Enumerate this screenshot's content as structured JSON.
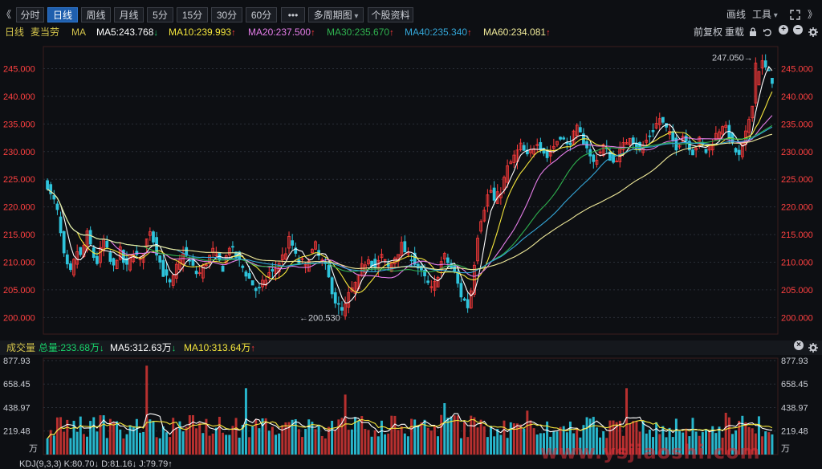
{
  "toolbar": {
    "collapse": "《",
    "expand": "》",
    "periods": [
      {
        "label": "分时",
        "active": false
      },
      {
        "label": "日线",
        "active": true
      },
      {
        "label": "周线",
        "active": false
      },
      {
        "label": "月线",
        "active": false
      },
      {
        "label": "5分",
        "active": false
      },
      {
        "label": "15分",
        "active": false
      },
      {
        "label": "30分",
        "active": false
      },
      {
        "label": "60分",
        "active": false
      }
    ],
    "more": "•••",
    "multi_period": "多周期图",
    "profile": "个股资料",
    "draw": "画线",
    "tools": "工具",
    "fullscreen_icon": "expand-icon",
    "window_icon": "chevrons-right-icon"
  },
  "legend": {
    "period": "日线",
    "stock": "麦当劳",
    "ma_label": "MA",
    "ma": [
      {
        "label": "MA5:243.768",
        "arrow": "↓",
        "dir": "down",
        "color": "#ffffff"
      },
      {
        "label": "MA10:239.993",
        "arrow": "↑",
        "dir": "up",
        "color": "#f5e63c"
      },
      {
        "label": "MA20:237.500",
        "arrow": "↑",
        "dir": "up",
        "color": "#e57de8"
      },
      {
        "label": "MA30:235.670",
        "arrow": "↑",
        "dir": "up",
        "color": "#2fb24f"
      },
      {
        "label": "MA40:235.340",
        "arrow": "↑",
        "dir": "up",
        "color": "#34a7d9"
      },
      {
        "label": "MA60:234.081",
        "arrow": "↑",
        "dir": "up",
        "color": "#f0ea9a"
      }
    ],
    "adjust": "前复权",
    "reset": "重载"
  },
  "chart_data": [
    {
      "type": "candlestick",
      "ylim": [
        197,
        249
      ],
      "y_ticks": [
        "200.000",
        "205.000",
        "210.000",
        "215.000",
        "220.000",
        "225.000",
        "230.000",
        "235.000",
        "240.000",
        "245.000"
      ],
      "annotations": [
        {
          "text": "247.050→",
          "value": 247.05,
          "kind": "high"
        },
        {
          "text": "←200.530",
          "value": 200.53,
          "kind": "low"
        }
      ],
      "close_path": [
        224,
        222,
        221,
        219,
        215,
        211,
        209,
        208,
        210,
        212,
        211,
        213,
        215,
        213,
        211,
        210,
        212,
        214,
        212,
        210,
        209,
        211,
        212,
        210,
        209,
        211,
        212,
        211,
        210,
        212,
        214,
        216,
        214,
        212,
        210,
        208,
        207,
        206,
        207,
        209,
        210,
        212,
        211,
        210,
        209,
        208,
        208,
        209,
        210,
        211,
        212,
        211,
        210,
        209,
        211,
        213,
        212,
        211,
        210,
        209,
        208,
        207,
        206,
        205,
        205,
        206,
        207,
        208,
        208,
        209,
        210,
        211,
        212,
        214,
        213,
        211,
        210,
        210,
        209,
        211,
        212,
        213,
        211,
        210,
        209,
        207,
        205,
        203,
        202,
        201,
        202,
        204,
        205,
        206,
        207,
        209,
        210,
        211,
        210,
        209,
        210,
        211,
        210,
        209,
        210,
        211,
        212,
        213,
        212,
        211,
        211,
        210,
        209,
        208,
        207,
        206,
        205,
        206,
        208,
        210,
        211,
        210,
        209,
        208,
        206,
        204,
        203,
        202,
        205,
        210,
        215,
        218,
        220,
        222,
        223,
        221,
        222,
        223,
        225,
        227,
        228,
        229,
        230,
        231,
        230,
        229,
        230,
        231,
        232,
        231,
        230,
        229,
        230,
        231,
        232,
        233,
        232,
        231,
        232,
        233,
        234,
        233,
        232,
        231,
        229,
        228,
        229,
        230,
        231,
        230,
        229,
        228,
        229,
        230,
        231,
        232,
        233,
        232,
        231,
        230,
        231,
        232,
        233,
        234,
        235,
        236,
        235,
        234,
        233,
        232,
        231,
        232,
        233,
        232,
        231,
        230,
        231,
        232,
        231,
        230,
        231,
        232,
        233,
        234,
        235,
        234,
        233,
        231,
        230,
        229,
        231,
        233,
        236,
        239,
        242,
        245,
        246,
        245,
        244,
        243
      ],
      "ma_series": [
        {
          "name": "MA5",
          "color": "#ffffff",
          "window": 5
        },
        {
          "name": "MA10",
          "color": "#f5e63c",
          "window": 10
        },
        {
          "name": "MA20",
          "color": "#e57de8",
          "window": 20
        },
        {
          "name": "MA30",
          "color": "#2fb24f",
          "window": 30
        },
        {
          "name": "MA40",
          "color": "#34a7d9",
          "window": 40
        },
        {
          "name": "MA60",
          "color": "#f0ea9a",
          "window": 60
        }
      ]
    },
    {
      "type": "bar",
      "ylim": [
        0,
        900
      ],
      "y_ticks": [
        "219.48",
        "438.97",
        "658.45",
        "877.93"
      ],
      "unit": "万",
      "spikes": [
        {
          "index": 30,
          "value": 830
        },
        {
          "index": 60,
          "value": 620
        },
        {
          "index": 90,
          "value": 560
        },
        {
          "index": 120,
          "value": 480
        },
        {
          "index": 145,
          "value": 410
        },
        {
          "index": 175,
          "value": 620
        },
        {
          "index": 205,
          "value": 390
        },
        {
          "index": 223,
          "value": 310
        }
      ]
    }
  ],
  "volume": {
    "label": "成交量",
    "total": "总量:233.68万",
    "total_arrow": "↓",
    "ma5": "MA5:312.63万",
    "ma5_arrow": "↓",
    "ma10": "MA10:313.64万",
    "ma10_arrow": "↑",
    "ma5_color": "#ffffff",
    "ma10_color": "#f5e63c"
  },
  "kdj": {
    "label": "KDJ(9,3,3)  K:80.70↓  D:81.16↓  J:79.79↑"
  },
  "colors": {
    "up": "#ff3b3b",
    "down": "#2ec4dc",
    "grid": "#2a2f37",
    "axis_red": "#ff4040"
  },
  "watermark": "www.ysjiaoshi.com"
}
